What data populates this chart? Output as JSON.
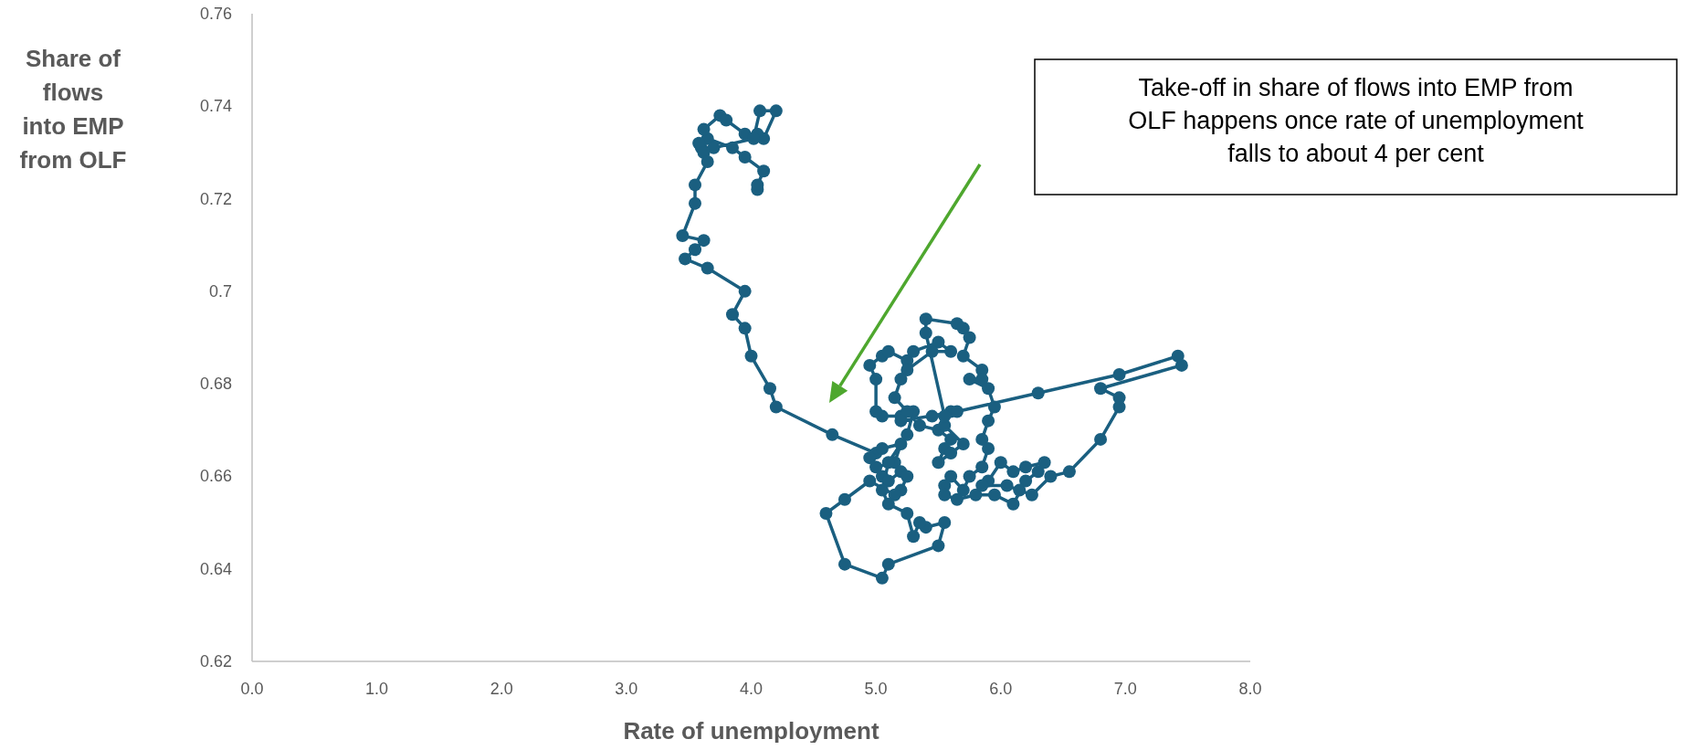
{
  "chart_data": {
    "type": "line",
    "marker": "circle",
    "xlabel": "Rate of unemployment",
    "ylabel": "Share of flows into EMP from OLF",
    "annotations": [
      "Take-off in share of flows into EMP from OLF happens once rate of unemployment falls to about 4 per cent"
    ],
    "xlim": [
      0,
      8
    ],
    "xticks": [
      {
        "value": 0,
        "label": "0.0"
      },
      {
        "value": 1,
        "label": "1.0"
      },
      {
        "value": 2,
        "label": "2.0"
      },
      {
        "value": 3,
        "label": "3.0"
      },
      {
        "value": 4,
        "label": "4.0"
      },
      {
        "value": 5,
        "label": "5.0"
      },
      {
        "value": 6,
        "label": "6.0"
      },
      {
        "value": 7,
        "label": "7.0"
      },
      {
        "value": 8,
        "label": "8.0"
      }
    ],
    "ylim": [
      0.62,
      0.76
    ],
    "yticks": [
      0.62,
      0.64,
      0.66,
      0.68,
      0.7,
      0.72,
      0.74,
      0.76
    ],
    "grid": false,
    "series": [
      {
        "color": "#1a5f80",
        "x": [
          4.05,
          4.05,
          4.1,
          3.95,
          3.85,
          3.65,
          3.62,
          3.75,
          3.8,
          3.95,
          4.05,
          4.1,
          4.2,
          4.07,
          4.02,
          3.7,
          3.6,
          3.58,
          3.62,
          3.65,
          3.55,
          3.55,
          3.45,
          3.62,
          3.55,
          3.47,
          3.65,
          3.95,
          3.85,
          3.95,
          4.0,
          4.15,
          4.2,
          4.65,
          5.0,
          4.95,
          5.05,
          5.2,
          5.15,
          5.0,
          5.05,
          5.1,
          5.2,
          5.25,
          5.2,
          5.15,
          4.95,
          4.75,
          4.6,
          4.75,
          5.05,
          5.1,
          5.5,
          5.55,
          5.4,
          5.35,
          5.3,
          5.25,
          5.1,
          5.05,
          5.1,
          5.25,
          5.3,
          5.2,
          5.05,
          5.0,
          5.0,
          4.95,
          5.05,
          5.1,
          5.25,
          5.3,
          5.5,
          5.6,
          5.45,
          5.25,
          5.2,
          5.15,
          5.25,
          5.35,
          5.5,
          5.6,
          5.55,
          5.5,
          5.6,
          5.7,
          5.55,
          5.6,
          5.45,
          5.55,
          5.4,
          5.4,
          5.65,
          5.7,
          5.75,
          5.7,
          5.85,
          5.85,
          5.75,
          5.9,
          5.95,
          5.9,
          5.85,
          5.9,
          5.85,
          5.75,
          5.7,
          5.6,
          5.55,
          5.55,
          5.65,
          5.8,
          5.95,
          6.1,
          6.2,
          6.3,
          6.35,
          6.2,
          6.1,
          6.0,
          5.9,
          5.85,
          6.05,
          6.15,
          6.25,
          6.4,
          6.55,
          6.8,
          6.95,
          6.95,
          6.8,
          7.45,
          7.42,
          6.95,
          6.3,
          5.65,
          5.2
        ],
        "values": [
          0.722,
          0.723,
          0.726,
          0.729,
          0.731,
          0.733,
          0.735,
          0.738,
          0.737,
          0.734,
          0.734,
          0.733,
          0.739,
          0.739,
          0.733,
          0.731,
          0.731,
          0.732,
          0.73,
          0.728,
          0.723,
          0.719,
          0.712,
          0.711,
          0.709,
          0.707,
          0.705,
          0.7,
          0.695,
          0.692,
          0.686,
          0.679,
          0.675,
          0.669,
          0.665,
          0.664,
          0.666,
          0.667,
          0.663,
          0.662,
          0.66,
          0.659,
          0.661,
          0.66,
          0.657,
          0.656,
          0.659,
          0.655,
          0.652,
          0.641,
          0.638,
          0.641,
          0.645,
          0.65,
          0.649,
          0.65,
          0.647,
          0.652,
          0.654,
          0.657,
          0.663,
          0.669,
          0.674,
          0.673,
          0.673,
          0.674,
          0.681,
          0.684,
          0.686,
          0.687,
          0.685,
          0.687,
          0.689,
          0.687,
          0.687,
          0.683,
          0.681,
          0.677,
          0.674,
          0.671,
          0.67,
          0.668,
          0.666,
          0.663,
          0.665,
          0.667,
          0.671,
          0.674,
          0.673,
          0.673,
          0.691,
          0.694,
          0.693,
          0.692,
          0.69,
          0.686,
          0.683,
          0.681,
          0.681,
          0.679,
          0.675,
          0.672,
          0.668,
          0.666,
          0.662,
          0.66,
          0.657,
          0.66,
          0.658,
          0.656,
          0.655,
          0.656,
          0.656,
          0.654,
          0.659,
          0.661,
          0.663,
          0.662,
          0.661,
          0.663,
          0.659,
          0.658,
          0.658,
          0.657,
          0.656,
          0.66,
          0.661,
          0.668,
          0.675,
          0.677,
          0.679,
          0.684,
          0.686,
          0.682,
          0.678,
          0.674,
          0.672
        ]
      }
    ]
  }
}
